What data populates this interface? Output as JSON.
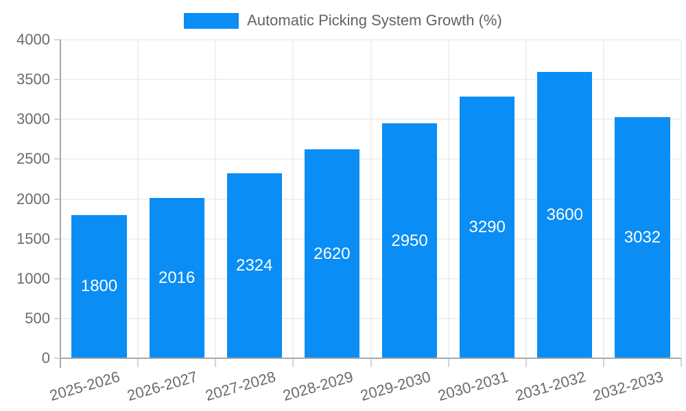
{
  "legend": {
    "label": "Automatic Picking System Growth (%)"
  },
  "colors": {
    "bar": "#0a8df4",
    "grid": "#e3e3e3",
    "axis": "#a8a8a8",
    "tick_label": "#6b6b6b",
    "legend_text": "#636363",
    "value_label": "#ffffff",
    "background": "#ffffff"
  },
  "chart_data": {
    "type": "bar",
    "title": "",
    "series_name": "Automatic Picking System Growth (%)",
    "categories": [
      "2025-2026",
      "2026-2027",
      "2027-2028",
      "2028-2029",
      "2029-2030",
      "2030-2031",
      "2031-2032",
      "2032-2033"
    ],
    "values": [
      1800,
      2016,
      2324,
      2620,
      2950,
      3290,
      3600,
      3032
    ],
    "value_labels": [
      "1800",
      "2016",
      "2324",
      "2620",
      "2950",
      "3290",
      "3600",
      "3032"
    ],
    "value_label_position": "inside-center",
    "xlabel": "",
    "ylabel": "",
    "ylim": [
      0,
      4000
    ],
    "yticks": [
      0,
      500,
      1000,
      1500,
      2000,
      2500,
      3000,
      3500,
      4000
    ],
    "grid": true,
    "legend_position": "top-center",
    "x_label_rotation_deg": -16
  }
}
